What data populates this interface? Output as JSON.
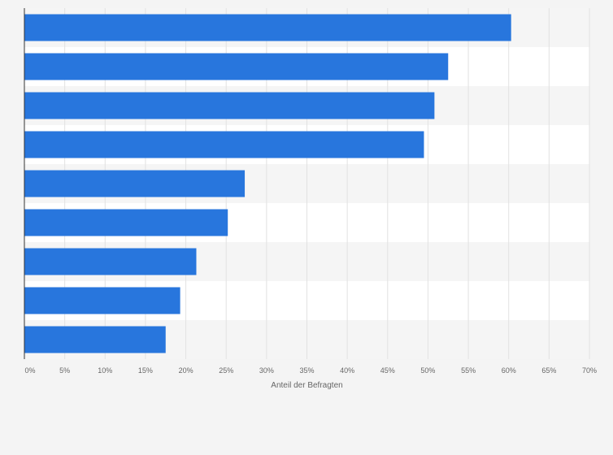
{
  "chart_data": {
    "type": "bar",
    "orientation": "horizontal",
    "title": "",
    "xlabel": "Anteil der Befragten",
    "ylabel": "",
    "categories": [
      "",
      "",
      "",
      "",
      "",
      "",
      "",
      "",
      ""
    ],
    "values": [
      60.3,
      52.5,
      50.8,
      49.5,
      27.3,
      25.2,
      21.3,
      19.3,
      17.5
    ],
    "xlim": [
      0,
      70
    ],
    "ticks": [
      0,
      5,
      10,
      15,
      20,
      25,
      30,
      35,
      40,
      45,
      50,
      55,
      60,
      65,
      70
    ],
    "tick_labels": [
      "0%",
      "5%",
      "10%",
      "15%",
      "20%",
      "25%",
      "30%",
      "35%",
      "40%",
      "45%",
      "50%",
      "55%",
      "60%",
      "65%",
      "70%"
    ],
    "grid": true,
    "legend": "none",
    "colors": {
      "bar": "#2876dd",
      "background": "#f4f4f4",
      "band_light": "#ffffff",
      "band_alt": "#f5f5f5",
      "grid": "#e2e2e2",
      "axis": "#333333",
      "text": "#666666"
    }
  }
}
